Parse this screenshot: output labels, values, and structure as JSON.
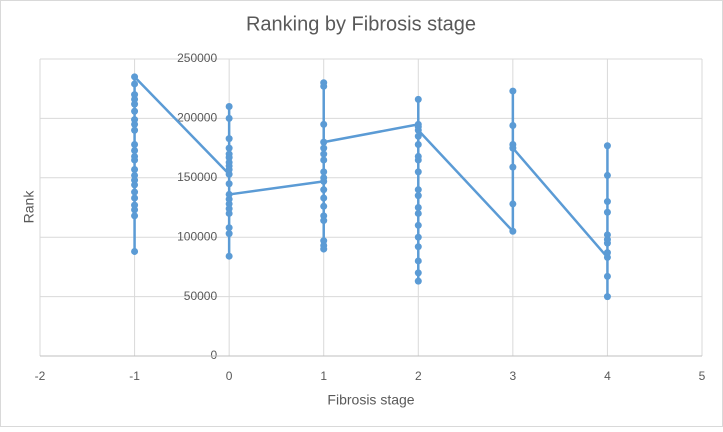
{
  "chart_data": {
    "type": "scatter",
    "title": "Ranking by Fibrosis stage",
    "x_label": "Fibrosis stage",
    "y_label": "Rank",
    "x": [
      -1,
      -1,
      -1,
      -1,
      -1,
      -1,
      -1,
      -1,
      -1,
      -1,
      -1,
      -1,
      -1,
      -1,
      -1,
      -1,
      -1,
      -1,
      -1,
      -1,
      -1,
      -1,
      -1,
      0,
      0,
      0,
      0,
      0,
      0,
      0,
      0,
      0,
      0,
      0,
      0,
      0,
      0,
      0,
      0,
      0,
      0,
      0,
      1,
      1,
      1,
      1,
      1,
      1,
      1,
      1,
      1,
      1,
      1,
      1,
      1,
      1,
      1,
      1,
      1,
      1,
      2,
      2,
      2,
      2,
      2,
      2,
      2,
      2,
      2,
      2,
      2,
      2,
      2,
      2,
      2,
      2,
      2,
      2,
      2,
      3,
      3,
      3,
      3,
      3,
      3,
      3,
      4,
      4,
      4,
      4,
      4,
      4,
      4,
      4,
      4,
      4,
      4
    ],
    "series": [
      {
        "color": "#5b9bd5",
        "values": [
          88000,
          118000,
          123000,
          127000,
          133000,
          138000,
          144000,
          148000,
          152000,
          157000,
          165000,
          168000,
          173000,
          178000,
          190000,
          195000,
          199000,
          206000,
          212000,
          216000,
          220000,
          229000,
          235000,
          153000,
          210000,
          200000,
          183000,
          175000,
          170000,
          167000,
          163000,
          160000,
          157000,
          145000,
          132000,
          128000,
          124000,
          120000,
          108000,
          103000,
          84000,
          136000,
          147000,
          150000,
          155000,
          140000,
          133000,
          126000,
          118000,
          114000,
          97000,
          93000,
          90000,
          230000,
          227000,
          195000,
          175000,
          170000,
          165000,
          180000,
          195000,
          216000,
          193000,
          185000,
          178000,
          168000,
          165000,
          155000,
          140000,
          135000,
          125000,
          120000,
          110000,
          100000,
          92000,
          80000,
          70000,
          63000,
          190000,
          105000,
          128000,
          159000,
          194000,
          223000,
          178000,
          175000,
          83000,
          177000,
          152000,
          130000,
          121000,
          102000,
          98000,
          95000,
          87000,
          67000,
          50000
        ]
      }
    ],
    "xlim": [
      -2,
      5
    ],
    "xticks": [
      -2,
      -1,
      0,
      1,
      2,
      3,
      4,
      5
    ],
    "ylim": [
      0,
      250000
    ],
    "yticks": [
      0,
      50000,
      100000,
      150000,
      200000,
      250000
    ],
    "grid": true
  }
}
